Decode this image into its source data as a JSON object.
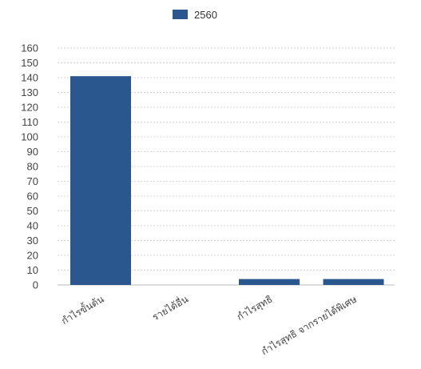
{
  "chart_data": {
    "type": "bar",
    "categories": [
      "กำไรขั้นต้น",
      "รายได้อื่น",
      "กำไรสุทธิ",
      "กำไรสุทธิ จากรายได้พิเศษ"
    ],
    "series": [
      {
        "name": "2560",
        "values": [
          141,
          0,
          4,
          4
        ]
      }
    ],
    "ylim": [
      0,
      160
    ],
    "yticks": [
      0,
      10,
      20,
      30,
      40,
      50,
      60,
      70,
      80,
      90,
      100,
      110,
      120,
      130,
      140,
      150,
      160
    ],
    "grid": true,
    "legend_position": "top-center",
    "colors": {
      "series_0": "#2b578f",
      "grid": "#d6d6d6",
      "text": "#444444"
    }
  }
}
